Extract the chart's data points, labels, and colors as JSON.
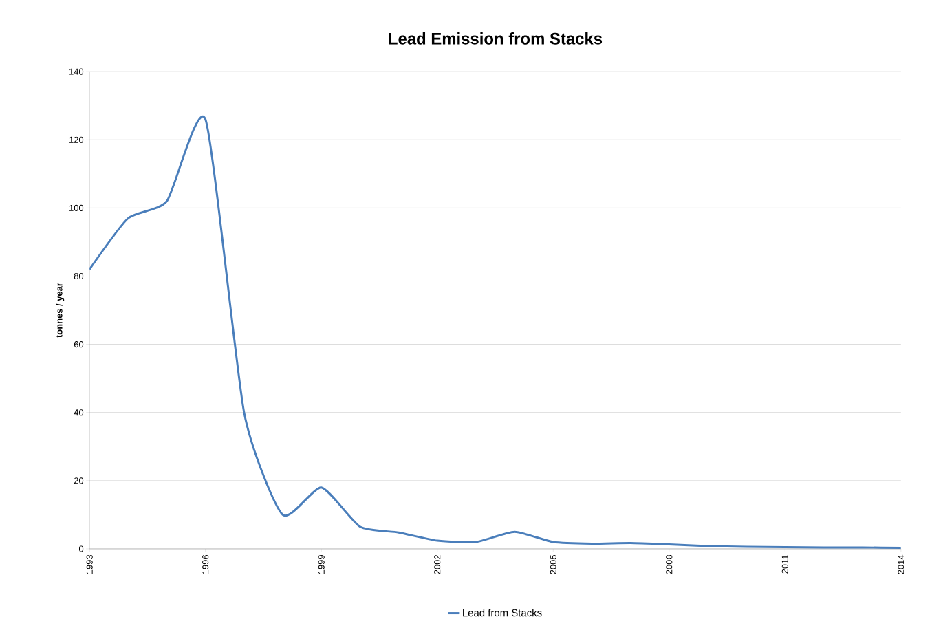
{
  "chart_data": {
    "type": "line",
    "title": "Lead Emission from Stacks",
    "ylabel": "tonnes / year",
    "x": [
      1993,
      1994,
      1995,
      1996,
      1997,
      1998,
      1999,
      2000,
      2001,
      2002,
      2003,
      2004,
      2005,
      2006,
      2007,
      2008,
      2009,
      2010,
      2011,
      2012,
      2013,
      2014
    ],
    "series": [
      {
        "name": "Lead from Stacks",
        "color": "#4a7ebb",
        "values": [
          82,
          97,
          102,
          126,
          40,
          10,
          18,
          6.5,
          4.8,
          2.4,
          2,
          5,
          2,
          1.5,
          1.7,
          1.3,
          0.8,
          0.6,
          0.5,
          0.4,
          0.4,
          0.3
        ]
      }
    ],
    "xlim": [
      1993,
      2014
    ],
    "xticks": [
      1993,
      1996,
      1999,
      2002,
      2005,
      2008,
      2011,
      2014
    ],
    "ylim": [
      0,
      140
    ],
    "yticks": [
      0,
      20,
      40,
      60,
      80,
      100,
      120,
      140
    ],
    "grid": "y",
    "legend": "bottom",
    "marker": "none",
    "line_style": "solid"
  }
}
